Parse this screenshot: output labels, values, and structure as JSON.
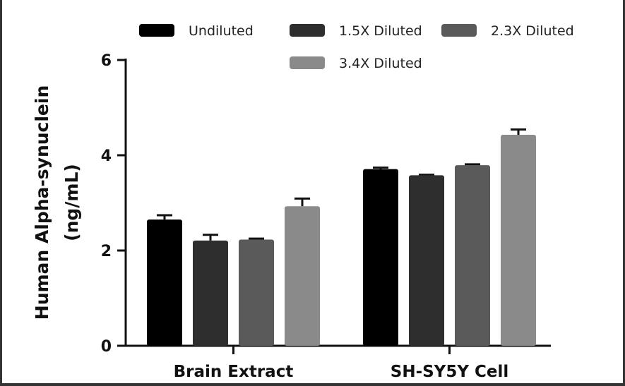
{
  "chart_data": {
    "type": "bar",
    "categories": [
      "Brain Extract",
      "SH-SY5Y Cell"
    ],
    "ylabel_line1": "Human Alpha-synuclein",
    "ylabel_line2": "(ng/mL)",
    "ylim": [
      0,
      6
    ],
    "yticks": [
      0,
      2,
      4,
      6
    ],
    "ytick_labels": [
      "0",
      "2",
      "4",
      "6"
    ],
    "grid": false,
    "legend_placement": "top",
    "series": [
      {
        "name": "Undiluted",
        "color": "#000000",
        "values": [
          2.65,
          3.71
        ],
        "errors": [
          0.09,
          0.03
        ]
      },
      {
        "name": "1.5X Diluted",
        "color": "#2e2e2e",
        "values": [
          2.21,
          3.58
        ],
        "errors": [
          0.12,
          0.01
        ]
      },
      {
        "name": "2.3X Diluted",
        "color": "#5a5a5a",
        "values": [
          2.23,
          3.79
        ],
        "errors": [
          0.02,
          0.02
        ]
      },
      {
        "name": "3.4X Diluted",
        "color": "#8a8a8a",
        "values": [
          2.93,
          4.43
        ],
        "errors": [
          0.16,
          0.11
        ]
      }
    ]
  }
}
